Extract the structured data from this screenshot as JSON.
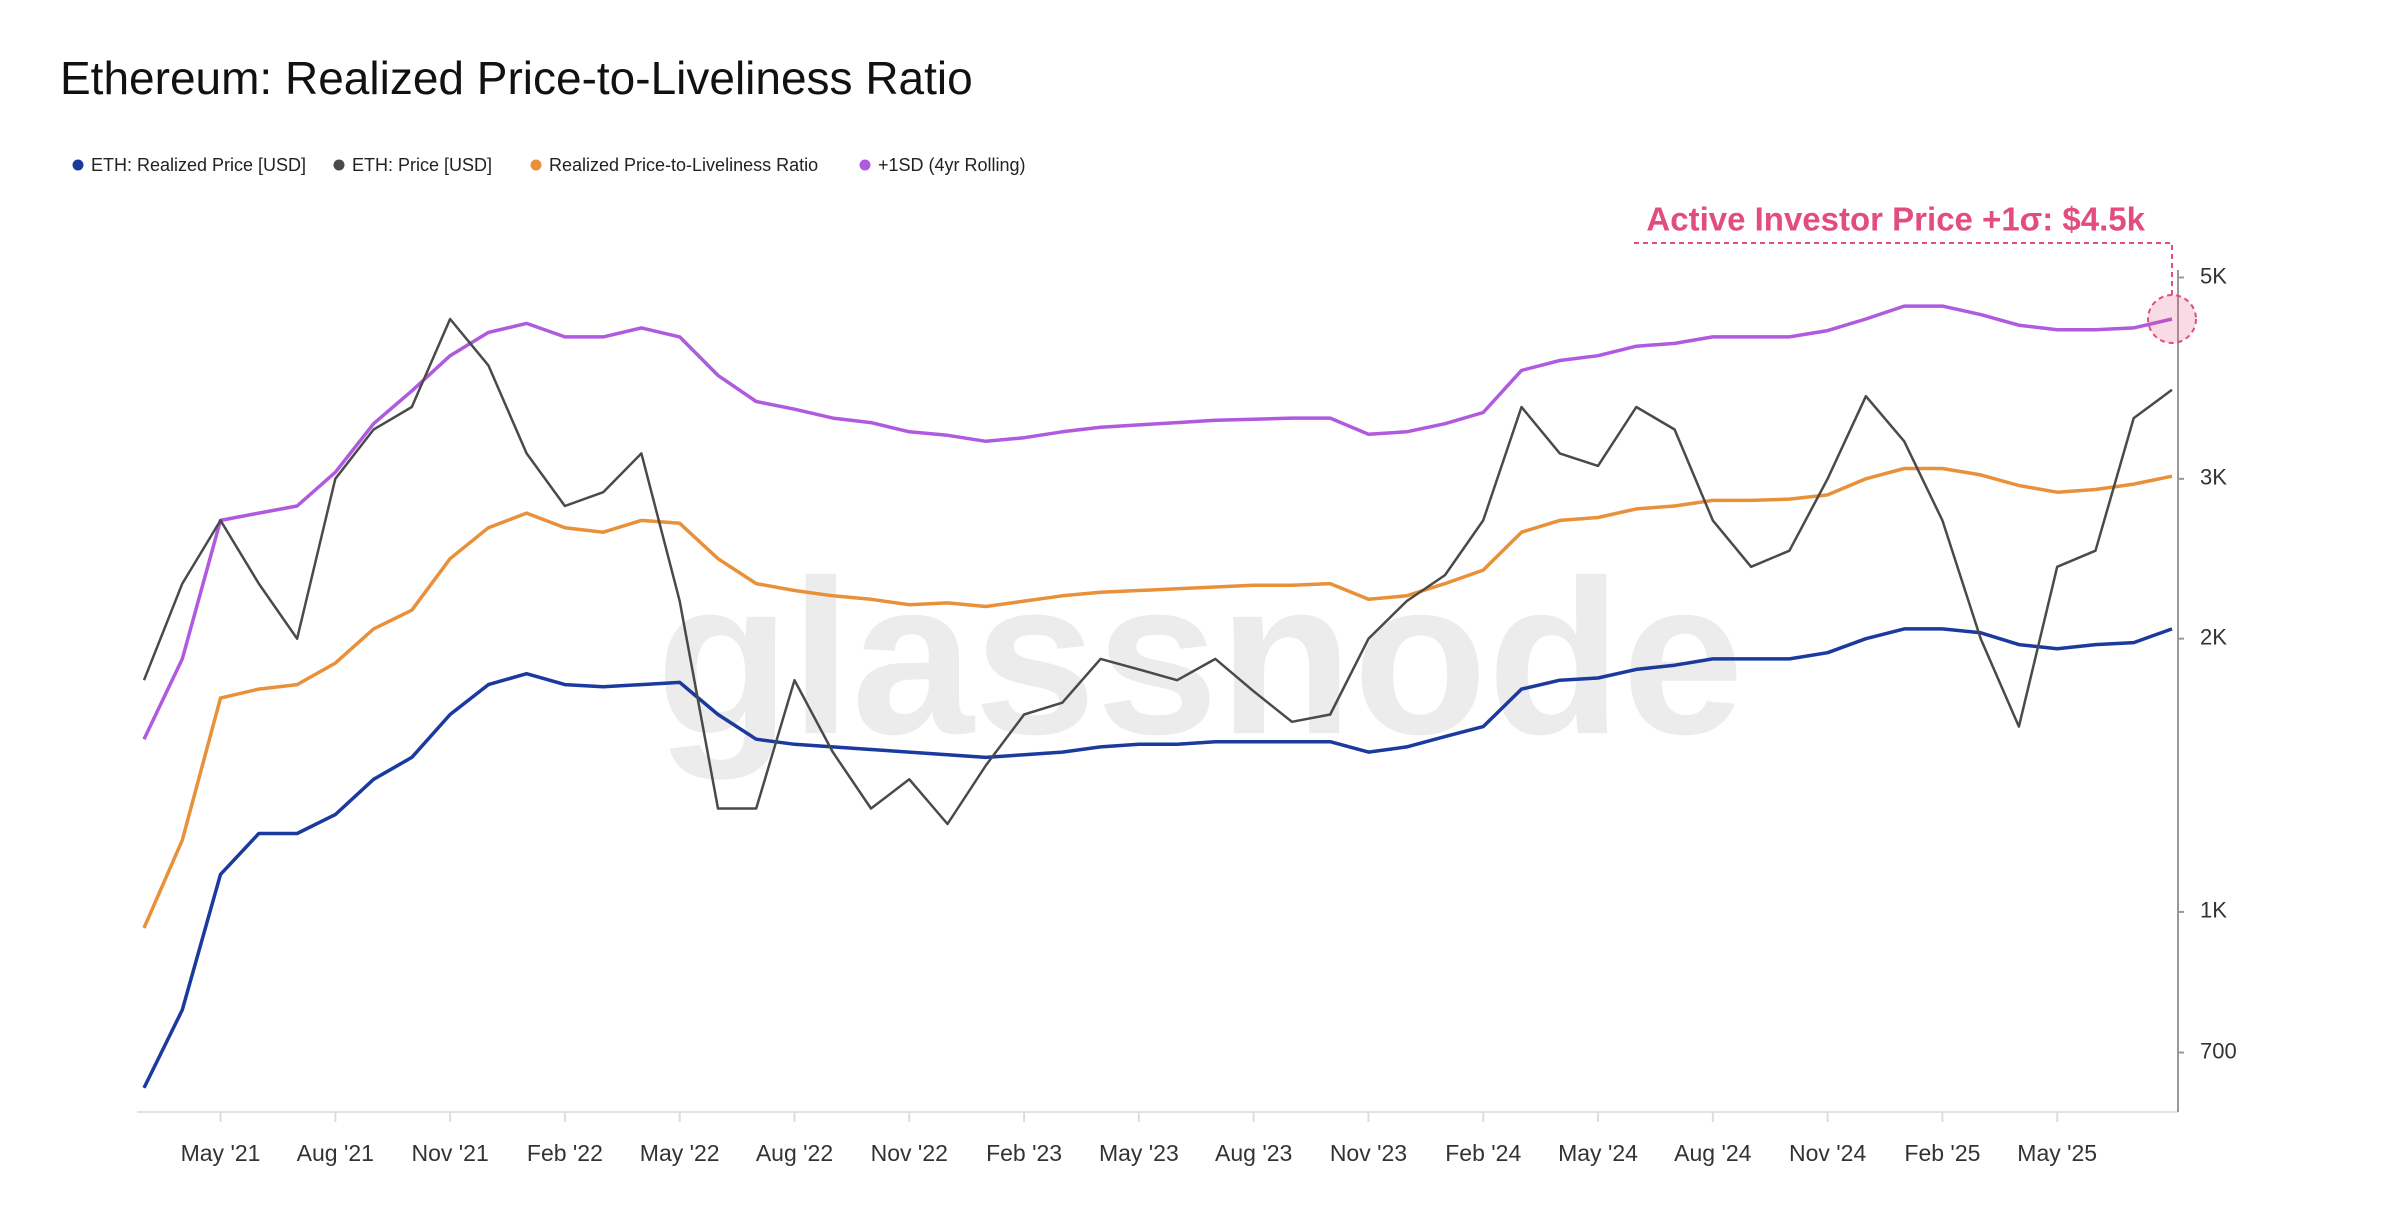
{
  "chart_data": {
    "type": "line",
    "title": "Ethereum: Realized Price-to-Liveliness Ratio",
    "watermark": "glassnode",
    "annotation": "Active Investor Price +1σ: $4.5k",
    "log_scale": true,
    "x": [
      "2021-03",
      "2021-04",
      "2021-05",
      "2021-06",
      "2021-07",
      "2021-08",
      "2021-09",
      "2021-10",
      "2021-11",
      "2021-12",
      "2022-01",
      "2022-02",
      "2022-03",
      "2022-04",
      "2022-05",
      "2022-06",
      "2022-07",
      "2022-08",
      "2022-09",
      "2022-10",
      "2022-11",
      "2022-12",
      "2023-01",
      "2023-02",
      "2023-03",
      "2023-04",
      "2023-05",
      "2023-06",
      "2023-07",
      "2023-08",
      "2023-09",
      "2023-10",
      "2023-11",
      "2023-12",
      "2024-01",
      "2024-02",
      "2024-03",
      "2024-04",
      "2024-05",
      "2024-06",
      "2024-07",
      "2024-08",
      "2024-09",
      "2024-10",
      "2024-11",
      "2024-12",
      "2025-01",
      "2025-02",
      "2025-03",
      "2025-04",
      "2025-05",
      "2025-06",
      "2025-07",
      "2025-08"
    ],
    "xlim": [
      "2021-03",
      "2025-08"
    ],
    "xticks": [
      {
        "value": "2021-05",
        "label": "May '21"
      },
      {
        "value": "2021-08",
        "label": "Aug '21"
      },
      {
        "value": "2021-11",
        "label": "Nov '21"
      },
      {
        "value": "2022-02",
        "label": "Feb '22"
      },
      {
        "value": "2022-05",
        "label": "May '22"
      },
      {
        "value": "2022-08",
        "label": "Aug '22"
      },
      {
        "value": "2022-11",
        "label": "Nov '22"
      },
      {
        "value": "2023-02",
        "label": "Feb '23"
      },
      {
        "value": "2023-05",
        "label": "May '23"
      },
      {
        "value": "2023-08",
        "label": "Aug '23"
      },
      {
        "value": "2023-11",
        "label": "Nov '23"
      },
      {
        "value": "2024-02",
        "label": "Feb '24"
      },
      {
        "value": "2024-05",
        "label": "May '24"
      },
      {
        "value": "2024-08",
        "label": "Aug '24"
      },
      {
        "value": "2024-11",
        "label": "Nov '24"
      },
      {
        "value": "2025-02",
        "label": "Feb '25"
      },
      {
        "value": "2025-05",
        "label": "May '25"
      }
    ],
    "ylim": [
      602,
      5200
    ],
    "yticks": [
      700,
      {
        "value": 1000,
        "label": "1K"
      },
      {
        "value": 2000,
        "label": "2K"
      },
      {
        "value": 3000,
        "label": "3K"
      },
      {
        "value": 5000,
        "label": "5K"
      }
    ],
    "series": [
      {
        "name": "ETH: Realized Price [USD]",
        "color": "#1b3a9e",
        "values": [
          640,
          780,
          1100,
          1220,
          1220,
          1280,
          1400,
          1480,
          1650,
          1780,
          1830,
          1780,
          1770,
          1780,
          1790,
          1650,
          1550,
          1530,
          1520,
          1510,
          1500,
          1490,
          1480,
          1490,
          1500,
          1520,
          1530,
          1530,
          1540,
          1540,
          1540,
          1540,
          1500,
          1520,
          1560,
          1600,
          1760,
          1800,
          1810,
          1850,
          1870,
          1900,
          1900,
          1900,
          1930,
          2000,
          2050,
          2050,
          2030,
          1970,
          1950,
          1970,
          1980,
          2050
        ]
      },
      {
        "name": "ETH: Price [USD]",
        "color": "#4a4a4a",
        "values": [
          1800,
          2300,
          2700,
          2300,
          2000,
          3000,
          3400,
          3600,
          4500,
          4000,
          3200,
          2800,
          2900,
          3200,
          2200,
          1300,
          1300,
          1800,
          1500,
          1300,
          1400,
          1250,
          1450,
          1650,
          1700,
          1900,
          1850,
          1800,
          1900,
          1750,
          1620,
          1650,
          2000,
          2200,
          2350,
          2700,
          3600,
          3200,
          3100,
          3600,
          3400,
          2700,
          2400,
          2500,
          3000,
          3700,
          3300,
          2700,
          2000,
          1600,
          2400,
          2500,
          3500,
          3760
        ]
      },
      {
        "name": "Realized Price-to-Liveliness Ratio",
        "color": "#e8913a",
        "values": [
          960,
          1200,
          1720,
          1760,
          1780,
          1880,
          2050,
          2150,
          2450,
          2650,
          2750,
          2650,
          2620,
          2700,
          2680,
          2450,
          2300,
          2260,
          2230,
          2210,
          2180,
          2190,
          2170,
          2200,
          2230,
          2250,
          2260,
          2270,
          2280,
          2290,
          2290,
          2300,
          2210,
          2230,
          2300,
          2380,
          2620,
          2700,
          2720,
          2780,
          2800,
          2840,
          2840,
          2850,
          2880,
          3000,
          3080,
          3080,
          3030,
          2950,
          2900,
          2920,
          2960,
          3020
        ]
      },
      {
        "name": "+1SD (4yr Rolling)",
        "color": "#b05ae0",
        "values": [
          1550,
          1900,
          2700,
          2750,
          2800,
          3050,
          3450,
          3750,
          4100,
          4350,
          4450,
          4300,
          4300,
          4400,
          4300,
          3900,
          3650,
          3580,
          3500,
          3460,
          3380,
          3350,
          3300,
          3330,
          3380,
          3420,
          3440,
          3460,
          3480,
          3490,
          3500,
          3500,
          3360,
          3380,
          3450,
          3550,
          3950,
          4050,
          4100,
          4200,
          4230,
          4300,
          4300,
          4300,
          4370,
          4500,
          4650,
          4650,
          4550,
          4430,
          4380,
          4380,
          4400,
          4500
        ]
      }
    ]
  }
}
